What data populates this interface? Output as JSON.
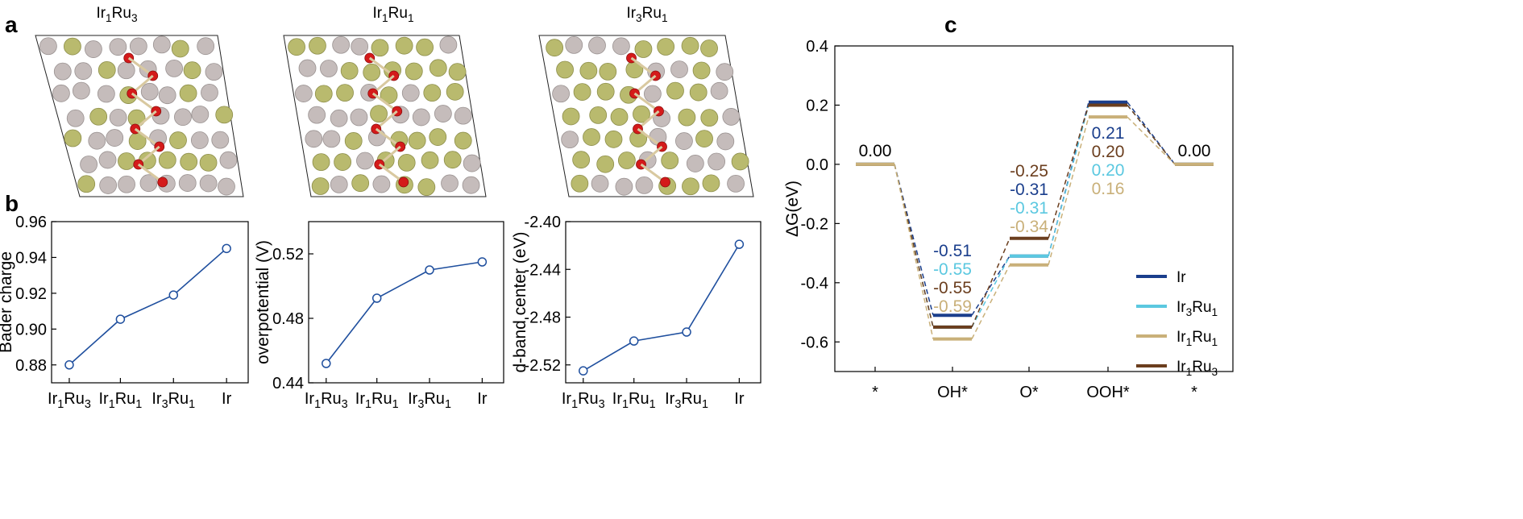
{
  "figure": {
    "panels": {
      "a": "a",
      "b": "b",
      "c": "c"
    },
    "structures": [
      {
        "base": "Ir",
        "sub1": "1",
        "mid": "Ru",
        "sub2": "3"
      },
      {
        "base": "Ir",
        "sub1": "1",
        "mid": "Ru",
        "sub2": "1"
      },
      {
        "base": "Ir",
        "sub1": "3",
        "mid": "Ru",
        "sub2": "1"
      }
    ],
    "colors": {
      "Ir": "#1a3e8c",
      "Ir3Ru1": "#5bc8e0",
      "Ir1Ru1": "#c9b079",
      "Ir1Ru3": "#6b3e1e",
      "line": "#1f4f9e",
      "atom_ru": "#b9ba6e",
      "atom_ir": "#c5bcbb",
      "atom_o": "#d41a1a"
    }
  },
  "chart_data": [
    {
      "type": "line",
      "panel": "b",
      "categories": [
        "Ir1Ru3",
        "Ir1Ru1",
        "Ir3Ru1",
        "Ir"
      ],
      "values": [
        0.88,
        0.9055,
        0.919,
        0.945
      ],
      "ylabel": "Bader charge",
      "ylim": [
        0.87,
        0.96
      ],
      "yticks": [
        "0.88",
        "0.90",
        "0.92",
        "0.94",
        "0.96"
      ],
      "ytick_values": [
        0.88,
        0.9,
        0.92,
        0.94,
        0.96
      ]
    },
    {
      "type": "line",
      "panel": "b",
      "categories": [
        "Ir1Ru3",
        "Ir1Ru1",
        "Ir3Ru1",
        "Ir"
      ],
      "values": [
        0.452,
        0.4925,
        0.51,
        0.515
      ],
      "ylabel": "overpotential (V)",
      "ylim": [
        0.44,
        0.54
      ],
      "yticks": [
        "0.44",
        "0.48",
        "0.52"
      ],
      "ytick_values": [
        0.44,
        0.48,
        0.52
      ]
    },
    {
      "type": "line",
      "panel": "b",
      "categories": [
        "Ir1Ru3",
        "Ir1Ru1",
        "Ir3Ru1",
        "Ir"
      ],
      "values": [
        -2.525,
        -2.5,
        -2.4925,
        -2.419
      ],
      "ylabel": "d-band center (eV)",
      "ylim": [
        -2.535,
        -2.4
      ],
      "yticks": [
        "-2.52",
        "-2.48",
        "-2.44",
        "-2.40"
      ],
      "ytick_values": [
        -2.52,
        -2.48,
        -2.44,
        -2.4
      ]
    },
    {
      "type": "line",
      "panel": "c",
      "subtype": "free-energy-diagram",
      "categories": [
        "*",
        "OH*",
        "O*",
        "OOH*",
        "*"
      ],
      "ylabel": "ΔG(eV)",
      "ylim": [
        -0.7,
        0.4
      ],
      "yticks": [
        "-0.6",
        "-0.4",
        "-0.2",
        "0.0",
        "0.2",
        "0.4"
      ],
      "ytick_values": [
        -0.6,
        -0.4,
        -0.2,
        0.0,
        0.2,
        0.4
      ],
      "series": [
        {
          "name": "Ir",
          "values": [
            0.0,
            -0.51,
            -0.31,
            0.21,
            0.0
          ]
        },
        {
          "name": "Ir3Ru1",
          "values": [
            0.0,
            -0.55,
            -0.31,
            0.2,
            0.0
          ]
        },
        {
          "name": "Ir1Ru1",
          "values": [
            0.0,
            -0.59,
            -0.34,
            0.16,
            0.0
          ]
        },
        {
          "name": "Ir1Ru3",
          "values": [
            0.0,
            -0.55,
            -0.25,
            0.2,
            0.0
          ]
        }
      ],
      "annotations": {
        "start": {
          "text": "0.00"
        },
        "end": {
          "text": "0.00"
        },
        "OH": [
          "-0.51",
          "-0.55",
          "-0.55",
          "-0.59"
        ],
        "O": [
          "-0.25",
          "-0.31",
          "-0.31",
          "-0.34"
        ],
        "OOH": [
          "0.21",
          "0.20",
          "0.20",
          "0.16"
        ]
      },
      "legend": {
        "placement": "bottom-right",
        "entries": [
          {
            "key": "Ir",
            "base": "Ir",
            "sub1": "",
            "mid": "",
            "sub2": ""
          },
          {
            "key": "Ir3Ru1",
            "base": "Ir",
            "sub1": "3",
            "mid": "Ru",
            "sub2": "1"
          },
          {
            "key": "Ir1Ru1",
            "base": "Ir",
            "sub1": "1",
            "mid": "Ru",
            "sub2": "1"
          },
          {
            "key": "Ir1Ru3",
            "base": "Ir",
            "sub1": "1",
            "mid": "Ru",
            "sub2": "3"
          }
        ]
      }
    }
  ]
}
